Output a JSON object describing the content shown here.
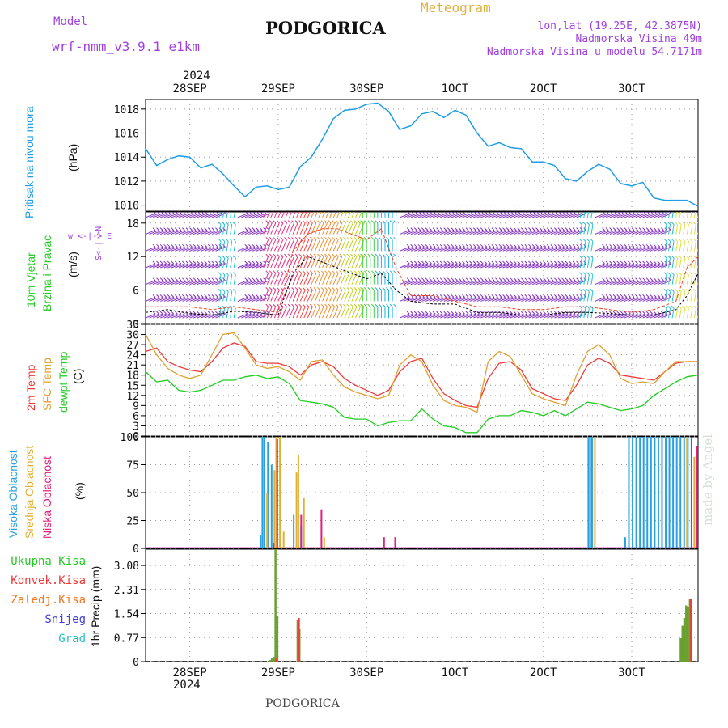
{
  "header": {
    "model_label": "Model",
    "model_name": "wrf-nmm_v3.9.1  e1km",
    "title": "PODGORICA",
    "meteogram": "Meteogram",
    "coords": "lon,lat (19.25E, 42.3875N)",
    "elevation": "Nadmorska Visina 49m",
    "model_elevation": "Nadmorska Visina u modelu 54.7171m",
    "footer": "PODGORICA",
    "watermark": "made by Angel"
  },
  "time_axis": {
    "top_year": "2024",
    "bottom_year": "2024",
    "labels": [
      "28SEP",
      "29SEP",
      "30SEP",
      "1OCT",
      "2OCT",
      "3OCT"
    ]
  },
  "colors": {
    "pressure": "#1f9ee6",
    "temp2m": "#ef3a3a",
    "sfc": "#e0a030",
    "dew": "#22cc22",
    "high": "#2aa0e0",
    "mid": "#e0b030",
    "low": "#e0207a",
    "precip_total": "#6aa030",
    "wind_label": "#22cc22",
    "purple": "#a040e0"
  },
  "panels": {
    "pressure": {
      "ylabel1": "Pritisak na nivou mora",
      "ylabel2": "(hPa)"
    },
    "wind": {
      "ylabel1": "10m Vjetar",
      "ylabel2": "Brzina i Pravac",
      "ylabel3": "(m/s)",
      "compass": "w <-|-> E",
      "compass_v": "S<-|->N"
    },
    "temp": {
      "ylabel1": "2m Temp",
      "ylabel2": "SFC Temp",
      "ylabel3": "dewpt Temp",
      "ylabel4": "(C)"
    },
    "cloud": {
      "ylabel1": "Visoka Oblacnost",
      "ylabel2": "Srednja Oblacnost",
      "ylabel3": "Niska Oblacnost",
      "ylabel4": "(%)"
    },
    "precip": {
      "ylabel": "1hr Precip (mm)",
      "legend": [
        "Ukupna Kisa",
        "Konvek.Kisa",
        "Zaledj.Kisa",
        "Snijeg",
        "Grad"
      ],
      "legend_colors": [
        "#22cc22",
        "#ef3a3a",
        "#f07820",
        "#4040e0",
        "#20c0c0"
      ]
    }
  },
  "chart_data": [
    {
      "type": "line",
      "name": "pressure",
      "ylabel": "(hPa)",
      "ylim": [
        1009.5,
        1018.8
      ],
      "yticks": [
        1010,
        1012,
        1014,
        1016,
        1018
      ],
      "x": [
        0,
        3,
        6,
        9,
        12,
        15,
        18,
        21,
        24,
        27,
        30,
        33,
        36,
        39,
        42,
        45,
        48,
        51,
        54,
        57,
        60,
        63,
        66,
        69,
        72,
        75,
        78,
        81,
        84,
        87,
        90,
        93,
        96,
        99,
        102,
        105,
        108,
        111,
        114,
        117,
        120,
        123,
        126,
        129,
        132,
        135,
        138,
        141,
        144,
        147,
        150
      ],
      "series": [
        {
          "values": [
            1014.7,
            1013.3,
            1013.8,
            1014.1,
            1014.0,
            1013.1,
            1013.4,
            1012.6,
            1011.6,
            1010.7,
            1011.5,
            1011.6,
            1011.3,
            1011.5,
            1013.2,
            1014.0,
            1015.5,
            1017.2,
            1017.9,
            1018.0,
            1018.4,
            1018.5,
            1017.8,
            1016.3,
            1016.6,
            1017.6,
            1017.8,
            1017.3,
            1017.9,
            1017.5,
            1016.0,
            1014.9,
            1015.2,
            1014.8,
            1014.7,
            1013.6,
            1013.6,
            1013.3,
            1012.2,
            1012.0,
            1012.8,
            1013.4,
            1013.0,
            1011.8,
            1011.6,
            1011.9,
            1010.6,
            1010.4,
            1010.4,
            1010.4,
            1009.9
          ]
        }
      ]
    },
    {
      "type": "line",
      "name": "wind",
      "ylabel": "(m/s)",
      "ylim": [
        0,
        20
      ],
      "yticks": [
        0,
        6,
        12,
        18
      ],
      "x": [
        0,
        6,
        12,
        18,
        24,
        30,
        36,
        40,
        44,
        48,
        52,
        56,
        60,
        64,
        68,
        72,
        78,
        84,
        90,
        96,
        102,
        108,
        114,
        120,
        126,
        132,
        138,
        144,
        147,
        150
      ],
      "series": [
        {
          "name": "speed",
          "values": [
            2,
            2.5,
            1.8,
            1.5,
            2.2,
            2,
            1.5,
            9,
            12,
            11,
            10,
            9,
            8,
            9,
            6,
            4,
            3.5,
            3.5,
            2,
            2,
            1.5,
            1.5,
            2,
            2,
            1.8,
            1.5,
            1.5,
            2.5,
            5,
            9
          ]
        },
        {
          "name": "gust",
          "values": [
            3,
            3,
            3,
            2.5,
            3,
            2.5,
            2,
            13,
            16,
            17,
            17,
            16,
            15,
            17,
            10,
            5,
            5,
            4,
            3,
            3,
            2.5,
            2.5,
            3,
            3,
            2.5,
            2,
            2.5,
            4,
            10,
            12
          ]
        }
      ]
    },
    {
      "type": "line",
      "name": "temperature",
      "ylabel": "(C)",
      "ylim": [
        0,
        33
      ],
      "yticks": [
        0,
        3,
        6,
        9,
        12,
        15,
        18,
        21,
        24,
        27,
        30,
        33
      ],
      "x": [
        0,
        3,
        6,
        9,
        12,
        15,
        18,
        21,
        24,
        27,
        30,
        33,
        36,
        39,
        42,
        45,
        48,
        51,
        54,
        57,
        60,
        63,
        66,
        69,
        72,
        75,
        78,
        81,
        84,
        87,
        90,
        93,
        96,
        99,
        102,
        105,
        108,
        111,
        114,
        117,
        120,
        123,
        126,
        129,
        132,
        135,
        138,
        141,
        144,
        147,
        150
      ],
      "series": [
        {
          "name": "2m Temp",
          "values": [
            25,
            26,
            22,
            20.5,
            19.5,
            19,
            22,
            26,
            27.5,
            26.5,
            22,
            21.5,
            21.5,
            20.5,
            18,
            21,
            22,
            20.5,
            17,
            15,
            13.5,
            12,
            13.5,
            19,
            22,
            23,
            17,
            12.5,
            10.5,
            9,
            8.5,
            17,
            21.5,
            22,
            19.5,
            14,
            12.5,
            11,
            10.5,
            15,
            21,
            23,
            21.5,
            18,
            17.5,
            17,
            16.5,
            19,
            21.5,
            22,
            22
          ]
        },
        {
          "name": "SFC Temp",
          "values": [
            30,
            24,
            20,
            18,
            17,
            18,
            24,
            30,
            30.5,
            26,
            21,
            20,
            20.5,
            19,
            16.5,
            22,
            22.5,
            18,
            14.5,
            13,
            12,
            11,
            12,
            21,
            24,
            22,
            15,
            10.5,
            9,
            8.5,
            7,
            22,
            25,
            23.5,
            18,
            12.5,
            11,
            10,
            9,
            18,
            25,
            27,
            24,
            17,
            15.5,
            16,
            15.5,
            19,
            22,
            22,
            22
          ]
        },
        {
          "name": "dewpt Temp",
          "values": [
            19,
            16,
            16.5,
            13.5,
            13,
            13.5,
            15,
            16.5,
            16.5,
            17.5,
            18,
            17,
            17.5,
            15.5,
            10.5,
            10,
            9.5,
            8.5,
            5.5,
            5,
            5,
            3,
            4,
            4.5,
            4.5,
            8,
            5,
            3,
            2.5,
            1,
            1,
            5,
            6,
            6,
            7.5,
            7,
            6,
            7.5,
            6,
            8,
            10,
            9.5,
            8.5,
            7.5,
            8,
            9,
            12,
            14,
            16,
            17.5,
            18
          ]
        }
      ]
    },
    {
      "type": "bar",
      "name": "clouds",
      "ylabel": "(%)",
      "ylim": [
        0,
        100
      ],
      "yticks": [
        0,
        25,
        50,
        75,
        100
      ],
      "series": [
        {
          "name": "Visoka Oblacnost",
          "x": [
            31,
            31.5,
            32,
            33,
            34,
            35.5,
            40,
            42,
            120,
            120.5,
            121,
            130,
            131,
            132,
            133,
            134,
            135,
            136,
            137,
            138,
            139,
            140,
            141,
            142,
            143,
            144,
            145,
            146,
            147,
            148
          ],
          "values": [
            12,
            100,
            100,
            95,
            75,
            55,
            30,
            20,
            100,
            100,
            100,
            10,
            100,
            100,
            100,
            100,
            100,
            100,
            100,
            100,
            100,
            100,
            100,
            100,
            100,
            100,
            100,
            100,
            100,
            100
          ]
        },
        {
          "name": "Srednja Oblacnost",
          "x": [
            32.5,
            34.5,
            35,
            36,
            37,
            40.5,
            41,
            42.5,
            48,
            121.5,
            146.5,
            148.5
          ],
          "values": [
            50,
            70,
            100,
            100,
            15,
            68,
            84,
            45,
            10,
            100,
            100,
            82
          ]
        },
        {
          "name": "Niska Oblacnost",
          "x": [
            34,
            35,
            41.5,
            47,
            64,
            67,
            147.5,
            149
          ],
          "values": [
            5,
            98,
            30,
            35,
            10,
            10,
            100,
            92
          ]
        }
      ]
    },
    {
      "type": "bar",
      "name": "precipitation",
      "ylabel": "1hr Precip (mm)",
      "ylim": [
        0,
        3.6
      ],
      "yticks": [
        0,
        0.77,
        1.54,
        2.31,
        3.08
      ],
      "series": [
        {
          "name": "Ukupna Kisa",
          "x": [
            33.5,
            34,
            34.5,
            35,
            35.5,
            41,
            41.5,
            145,
            145.5,
            146,
            146.5,
            147,
            147.5
          ],
          "values": [
            0.05,
            0.1,
            0.15,
            3.6,
            1.45,
            1.35,
            1.05,
            0.75,
            1.15,
            1.4,
            1.8,
            1.75,
            2.0
          ]
        },
        {
          "name": "Konvek.Kisa",
          "x": [
            35,
            41,
            147.5
          ],
          "values": [
            0.1,
            1.4,
            2.0
          ]
        }
      ]
    }
  ]
}
